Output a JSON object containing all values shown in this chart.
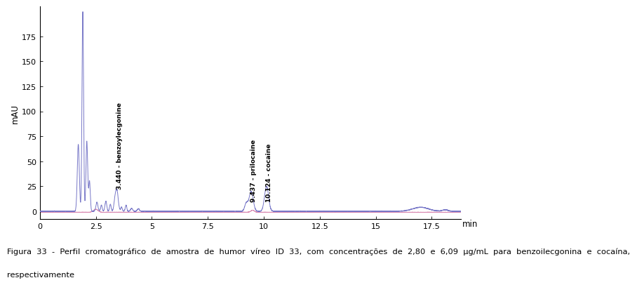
{
  "xlabel": "min",
  "ylabel": "mAU",
  "xlim": [
    0,
    18.8
  ],
  "ylim": [
    -8,
    205
  ],
  "yticks": [
    0,
    25,
    50,
    75,
    100,
    125,
    150,
    175
  ],
  "xticks": [
    0,
    2.5,
    5,
    7.5,
    10,
    12.5,
    15,
    17.5
  ],
  "xtick_labels": [
    "0",
    "2.5",
    "5",
    "7.5",
    "10",
    "12.5",
    "15",
    "17.5"
  ],
  "line_color_blue": "#7878c8",
  "line_color_pink": "#d070a0",
  "bg_color": "#ffffff",
  "ann1_label": "3.440 - benzoylecgonine",
  "ann1_x": 3.55,
  "ann1_y": 22,
  "ann2_label": "9.437 - prilocaine",
  "ann2_x": 9.55,
  "ann2_y": 10,
  "ann3_label": "10.124 - cocaine",
  "ann3_x": 10.24,
  "ann3_y": 10,
  "caption_line1": "Figura  33  -  Perfil  cromatográfico  de  amostra  de  humor  víreo  ID  33,  com  concentrações  de  2,80  e  6,09  µg/mL  para  benzoilecgonina  e  cocaína,",
  "caption_line2": "respectivamente"
}
